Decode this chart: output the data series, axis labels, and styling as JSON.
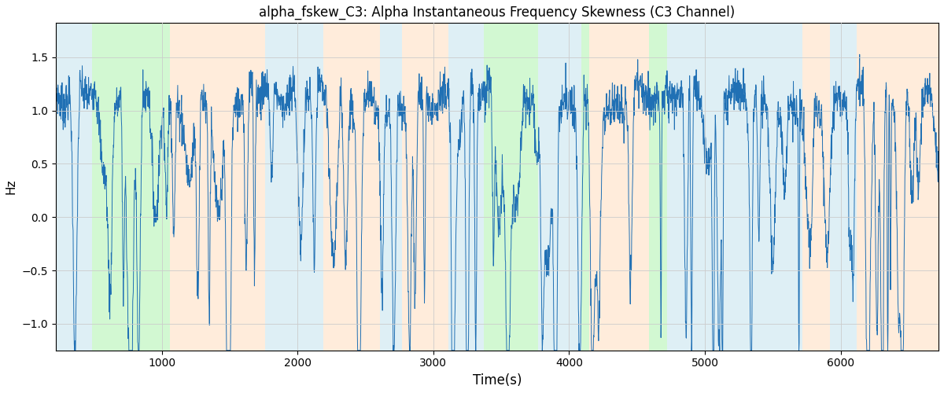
{
  "title": "alpha_fskew_C3: Alpha Instantaneous Frequency Skewness (C3 Channel)",
  "xlabel": "Time(s)",
  "ylabel": "Hz",
  "xlim": [
    220,
    6720
  ],
  "ylim": [
    -1.25,
    1.82
  ],
  "line_color": "#2070b4",
  "line_width": 0.7,
  "background_color": "#ffffff",
  "grid_color": "#cccccc",
  "yticks": [
    -1.0,
    -0.5,
    0.0,
    0.5,
    1.0,
    1.5
  ],
  "xticks": [
    1000,
    2000,
    3000,
    4000,
    5000,
    6000
  ],
  "figsize": [
    12,
    5
  ],
  "dpi": 100,
  "bands": [
    {
      "start": 220,
      "end": 490,
      "color": "#add8e6",
      "alpha": 0.4
    },
    {
      "start": 490,
      "end": 1060,
      "color": "#90ee90",
      "alpha": 0.4
    },
    {
      "start": 1060,
      "end": 1760,
      "color": "#ffdab9",
      "alpha": 0.5
    },
    {
      "start": 1760,
      "end": 2190,
      "color": "#add8e6",
      "alpha": 0.4
    },
    {
      "start": 2190,
      "end": 2610,
      "color": "#ffdab9",
      "alpha": 0.5
    },
    {
      "start": 2610,
      "end": 2770,
      "color": "#add8e6",
      "alpha": 0.4
    },
    {
      "start": 2770,
      "end": 3110,
      "color": "#ffdab9",
      "alpha": 0.5
    },
    {
      "start": 3110,
      "end": 3370,
      "color": "#add8e6",
      "alpha": 0.4
    },
    {
      "start": 3370,
      "end": 3770,
      "color": "#90ee90",
      "alpha": 0.4
    },
    {
      "start": 3770,
      "end": 4090,
      "color": "#add8e6",
      "alpha": 0.4
    },
    {
      "start": 4090,
      "end": 4150,
      "color": "#90ee90",
      "alpha": 0.4
    },
    {
      "start": 4150,
      "end": 4590,
      "color": "#ffdab9",
      "alpha": 0.5
    },
    {
      "start": 4590,
      "end": 4720,
      "color": "#90ee90",
      "alpha": 0.4
    },
    {
      "start": 4720,
      "end": 5720,
      "color": "#add8e6",
      "alpha": 0.4
    },
    {
      "start": 5720,
      "end": 5920,
      "color": "#ffdab9",
      "alpha": 0.5
    },
    {
      "start": 5920,
      "end": 6120,
      "color": "#add8e6",
      "alpha": 0.4
    },
    {
      "start": 6120,
      "end": 6720,
      "color": "#ffdab9",
      "alpha": 0.5
    }
  ],
  "seed": 7,
  "n_points": 3200
}
